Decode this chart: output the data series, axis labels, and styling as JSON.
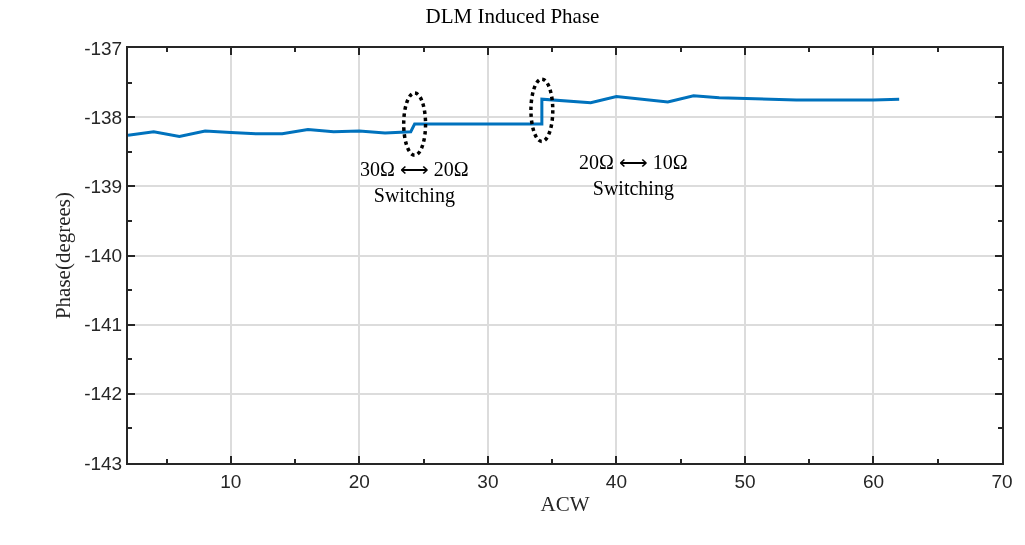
{
  "chart_data": {
    "type": "line",
    "title": "DLM Induced Phase",
    "xlabel": "ACW",
    "ylabel": "Phase(degrees)",
    "xlim": [
      2,
      70
    ],
    "xticks": [
      10,
      20,
      30,
      40,
      50,
      60,
      70
    ],
    "ylim": [
      -143,
      -137
    ],
    "yticks": [
      -143,
      -142,
      -141,
      -140,
      -139,
      -138,
      -137
    ],
    "grid": true,
    "line_style": "solid",
    "marker": "none",
    "series": [
      {
        "color": "#0072bd",
        "x": [
          2,
          4,
          6,
          8,
          10,
          12,
          14,
          16,
          18,
          20,
          22,
          24,
          24.3,
          34.2,
          34.2,
          38,
          40,
          44,
          46,
          48,
          54,
          60,
          62
        ],
        "values": [
          -138.26,
          -138.21,
          -138.28,
          -138.2,
          -138.22,
          -138.24,
          -138.24,
          -138.18,
          -138.21,
          -138.2,
          -138.23,
          -138.21,
          -138.1,
          -138.1,
          -137.74,
          -137.79,
          -137.7,
          -137.78,
          -137.69,
          -137.72,
          -137.75,
          -137.75,
          -137.74
        ]
      }
    ],
    "annotations": [
      {
        "text": "30Ω ⟷ 20Ω\nSwitching",
        "x": 24.3,
        "y": -138.1
      },
      {
        "text": "20Ω ⟷ 10Ω\nSwitching",
        "x": 34.2,
        "y": -137.9
      }
    ]
  }
}
